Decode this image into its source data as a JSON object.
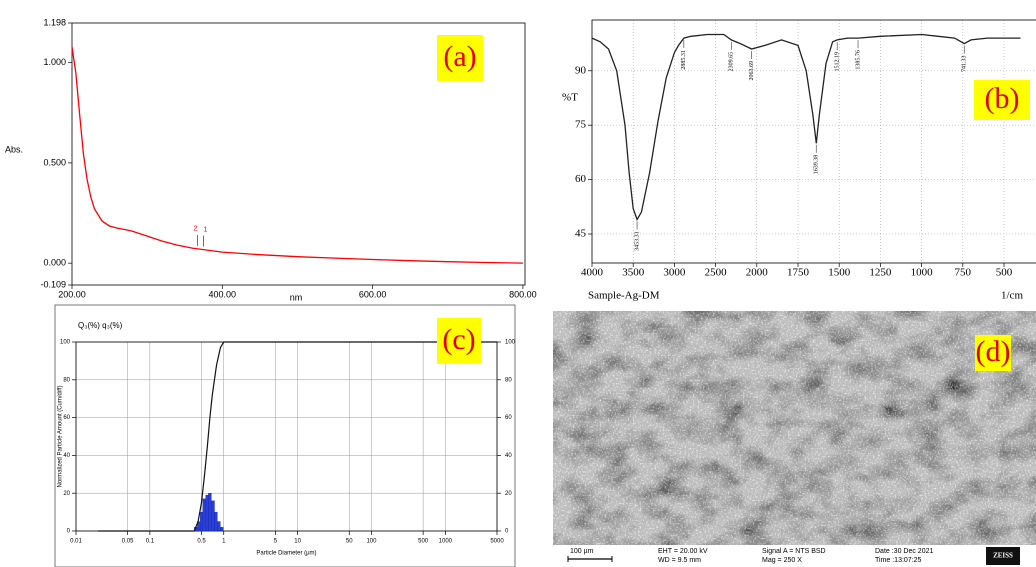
{
  "chart_data": [
    {
      "type": "line",
      "panel_label": "(a)",
      "xlabel": "nm",
      "ylabel": "Abs.",
      "color": "#ff0000",
      "grid": false,
      "x": [
        200,
        205,
        210,
        215,
        220,
        225,
        230,
        240,
        250,
        260,
        270,
        280,
        300,
        320,
        340,
        360,
        380,
        400,
        450,
        500,
        550,
        600,
        650,
        700,
        750,
        800
      ],
      "values": [
        1.08,
        0.95,
        0.75,
        0.55,
        0.42,
        0.33,
        0.27,
        0.21,
        0.185,
        0.175,
        0.168,
        0.16,
        0.135,
        0.11,
        0.09,
        0.075,
        0.065,
        0.055,
        0.042,
        0.032,
        0.025,
        0.018,
        0.012,
        0.007,
        0.003,
        0.0
      ],
      "xlim": [
        200,
        800
      ],
      "xticks": [
        {
          "value": 200,
          "label": "200.00"
        },
        {
          "value": 400,
          "label": "400.00"
        },
        {
          "value": 600,
          "label": "600.00"
        },
        {
          "value": 800,
          "label": "800.00"
        }
      ],
      "ylim": [
        -0.109,
        1.198
      ],
      "yticks": [
        {
          "value": -0.109,
          "label": "-0.109"
        },
        {
          "value": 0,
          "label": "0.000"
        },
        {
          "value": 0.5,
          "label": "0.500"
        },
        {
          "value": 1,
          "label": "1.000"
        },
        {
          "value": 1.198,
          "label": "1.198"
        }
      ],
      "peaks": {
        "x": [
          367,
          375
        ],
        "labels": [
          "2",
          "1"
        ]
      }
    },
    {
      "type": "line",
      "panel_label": "(b)",
      "ylabel": "%T",
      "xlabel": "1/cm",
      "sample": "Sample-Ag-DM",
      "color": "#222222",
      "grid": true,
      "x": [
        4000,
        3900,
        3800,
        3700,
        3600,
        3550,
        3500,
        3453,
        3400,
        3300,
        3200,
        3100,
        3000,
        2950,
        2885,
        2800,
        2600,
        2400,
        2309,
        2200,
        2063,
        1950,
        1850,
        1750,
        1700,
        1660,
        1639,
        1620,
        1580,
        1540,
        1512,
        1450,
        1385,
        1250,
        1000,
        900,
        800,
        741,
        700,
        600,
        500,
        400
      ],
      "values": [
        99,
        98,
        96,
        90,
        75,
        62,
        52,
        49,
        51,
        62,
        76,
        88,
        95,
        97,
        99,
        99.5,
        100,
        100,
        98.5,
        97.5,
        96,
        97,
        98.5,
        97,
        90,
        78,
        70,
        78,
        92,
        98,
        98.5,
        99,
        99,
        99.5,
        100,
        99.5,
        99,
        97.5,
        98.5,
        99,
        99,
        99
      ],
      "xlim": [
        4000,
        400
      ],
      "xticks": [
        4000,
        3500,
        3000,
        2500,
        2000,
        1750,
        1500,
        1250,
        1000,
        750,
        500
      ],
      "ylim": [
        37,
        104
      ],
      "yticks": [
        45,
        60,
        75,
        90
      ],
      "peaks": {
        "x": [
          3453.31,
          2885.31,
          2309.65,
          2063.69,
          1639.38,
          1512.19,
          1385.76,
          741.33
        ],
        "labels": [
          "3453.31",
          "2885.31",
          "2309.65",
          "2063.69",
          "1639.38",
          "1512.19",
          "1385.76",
          "741.33"
        ]
      }
    },
    {
      "type": "histogram",
      "panel_label": "(c)",
      "title": "Q₃(%) q₃(%)",
      "xlabel": "Particle Diameter (μm)",
      "ylabel": "Normalized Particle Amount (Cum/diff)",
      "xscale": "log",
      "grid": true,
      "color": "#2a3fd8",
      "bins": [
        0.4,
        0.44,
        0.48,
        0.52,
        0.57,
        0.62,
        0.68,
        0.75,
        0.82,
        0.9,
        0.98
      ],
      "values": [
        2,
        5,
        10,
        17,
        19,
        20,
        16,
        10,
        5,
        2
      ],
      "cumulative": {
        "color": "#111111",
        "x": [
          0.02,
          0.4,
          0.45,
          0.5,
          0.55,
          0.6,
          0.65,
          0.7,
          0.8,
          0.9,
          1.0,
          5000
        ],
        "values": [
          0,
          0,
          5,
          15,
          30,
          45,
          60,
          72,
          88,
          97,
          100,
          100
        ]
      },
      "xlim": [
        0.01,
        5000
      ],
      "xticks": [
        0.01,
        0.05,
        0.1,
        0.5,
        1,
        5,
        10,
        50,
        100,
        500,
        1000,
        5000
      ],
      "ylim": [
        0,
        100
      ],
      "yticks": [
        0,
        20,
        40,
        60,
        80,
        100
      ],
      "y2lim": [
        0,
        100
      ],
      "y2ticks": [
        0,
        20,
        40,
        60,
        80,
        100
      ]
    }
  ],
  "image_panel": {
    "panel_label": "(d)",
    "scale_bar": "100 µm",
    "info": [
      "EHT = 20.00 kV",
      "WD =  9.5 mm",
      "Signal A = NTS BSD",
      "Mag =    250 X",
      "Date :30 Dec 2021",
      "Time :13:07:25"
    ],
    "brand": "ZEISS"
  }
}
